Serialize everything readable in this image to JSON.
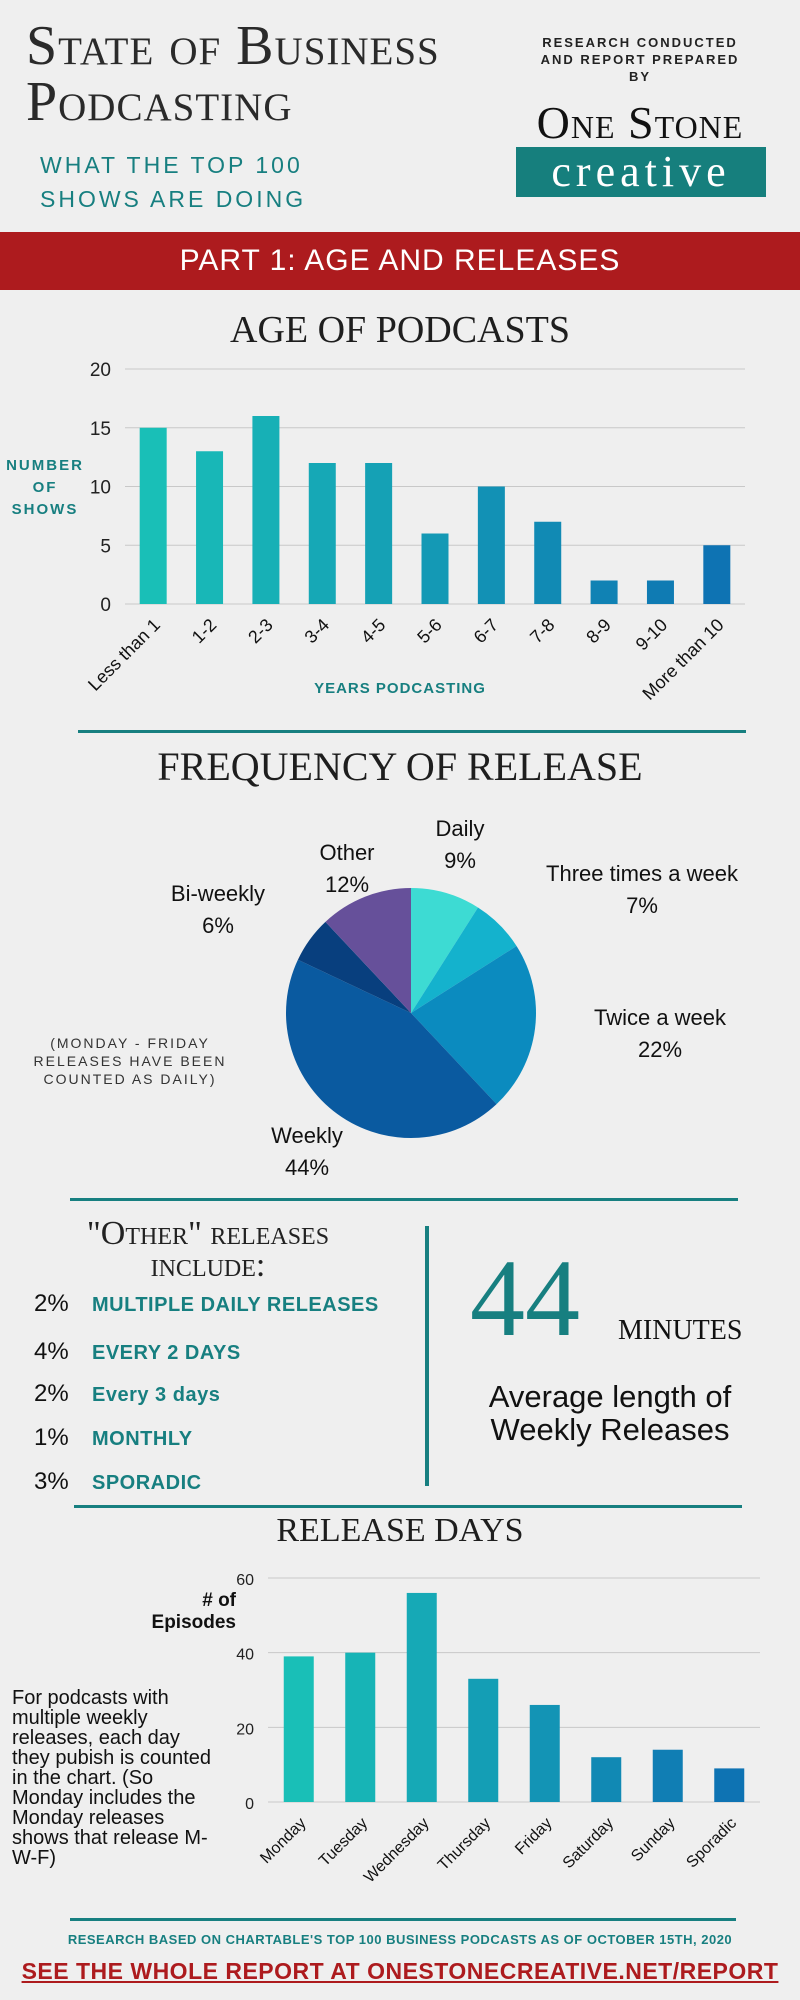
{
  "header": {
    "title_line1": "State of Business",
    "title_line2": "Podcasting",
    "subtitle": "What the top 100 shows are doing",
    "research_note_line1": "RESEARCH CONDUCTED",
    "research_note_line2": "AND REPORT PREPARED",
    "research_note_line3": "BY",
    "brand_top": "One Stone",
    "brand_bottom": "creative"
  },
  "banner": {
    "text": "PART 1: AGE AND RELEASES"
  },
  "colors": {
    "teal": "#177f80",
    "red": "#ad1b1e",
    "bar_light": "#19bfb7",
    "bar_dark": "#0e73b3"
  },
  "chart_data": [
    {
      "type": "bar",
      "title": "AGE OF PODCASTS",
      "xlabel": "YEARS PODCASTING",
      "ylabel": "NUMBER OF SHOWS",
      "categories": [
        "Less than 1",
        "1-2",
        "2-3",
        "3-4",
        "4-5",
        "5-6",
        "6-7",
        "7-8",
        "8-9",
        "9-10",
        "More than 10"
      ],
      "values": [
        15,
        13,
        16,
        12,
        12,
        6,
        10,
        7,
        2,
        2,
        5
      ],
      "ylim": [
        0,
        20
      ],
      "yticks": [
        0,
        5,
        10,
        15,
        20
      ],
      "grid": true
    },
    {
      "type": "pie",
      "title": "FREQUENCY OF  RELEASE",
      "slices": [
        {
          "label": "Daily",
          "value": 9,
          "value_label": "9%",
          "color": "#3ddbd3"
        },
        {
          "label": "Three times a week",
          "value": 7,
          "value_label": "7%",
          "color": "#14b2cd"
        },
        {
          "label": "Twice a week",
          "value": 22,
          "value_label": "22%",
          "color": "#0b8bbf"
        },
        {
          "label": "Weekly",
          "value": 44,
          "value_label": "44%",
          "color": "#0a5aa0"
        },
        {
          "label": "Bi-weekly",
          "value": 6,
          "value_label": "6%",
          "color": "#083f7e"
        },
        {
          "label": "Other",
          "value": 12,
          "value_label": "12%",
          "color": "#66509a"
        }
      ]
    },
    {
      "type": "bar",
      "title": "RELEASE DAYS",
      "ylabel": "# of Episodes",
      "categories": [
        "Monday",
        "Tuesday",
        "Wednesday",
        "Thursday",
        "Friday",
        "Saturday",
        "Sunday",
        "Sporadic"
      ],
      "values": [
        39,
        40,
        56,
        33,
        26,
        12,
        14,
        9
      ],
      "ylim": [
        0,
        60
      ],
      "yticks": [
        0,
        20,
        40,
        60
      ],
      "grid": true
    }
  ],
  "age": {
    "ylabel_line1": "NUMBER",
    "ylabel_line2": "OF",
    "ylabel_line3": "SHOWS",
    "xlabel": "YEARS PODCASTING"
  },
  "freq": {
    "note": "(MONDAY - FRIDAY RELEASES HAVE BEEN COUNTED AS DAILY)"
  },
  "other": {
    "title_line1": "\"Other\" releases",
    "title_line2": "include:",
    "items": [
      {
        "pct": "2%",
        "label": "MULTIPLE DAILY  RELEASES"
      },
      {
        "pct": "4%",
        "label": "EVERY 2 DAYS"
      },
      {
        "pct": "2%",
        "label": "Every 3 days"
      },
      {
        "pct": "1%",
        "label": "MONTHLY"
      },
      {
        "pct": "3%",
        "label": "SPORADIC"
      }
    ]
  },
  "stat": {
    "value": "44",
    "unit": "minutes",
    "caption": "Average length of Weekly Releases"
  },
  "days": {
    "ylabel_line1": "# of",
    "ylabel_line2": "Episodes",
    "note": "For podcasts with multiple weekly releases, each day they pubish is counted in the chart. (So Monday includes the Monday releases shows that release M-W-F)"
  },
  "footer": {
    "note": "RESEARCH BASED ON CHARTABLE'S TOP 100 BUSINESS PODCASTS AS OF OCTOBER 15TH, 2020",
    "link": "SEE THE WHOLE REPORT AT ONESTONECREATIVE.NET/REPORT"
  }
}
